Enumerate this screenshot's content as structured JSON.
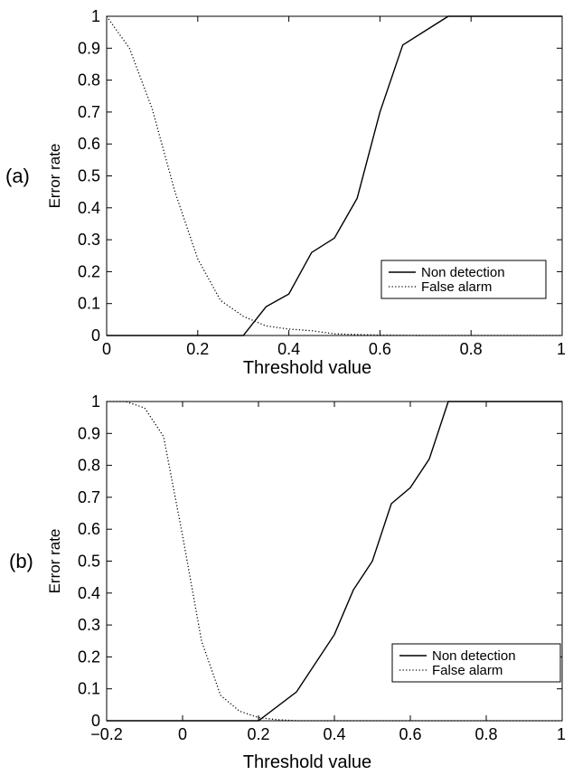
{
  "chart_data": [
    {
      "type": "line",
      "panel_label": "(a)",
      "xlabel": "Threshold value",
      "ylabel": "Error rate",
      "xlim": [
        0,
        1
      ],
      "ylim": [
        0,
        1
      ],
      "xticks": [
        0,
        0.2,
        0.4,
        0.6,
        0.8,
        1
      ],
      "xtick_labels": [
        "0",
        "0.2",
        "0.4",
        "0.6",
        "0.8",
        "1"
      ],
      "yticks": [
        0,
        0.1,
        0.2,
        0.3,
        0.4,
        0.5,
        0.6,
        0.7,
        0.8,
        0.9,
        1
      ],
      "ytick_labels": [
        "0",
        "0.1",
        "0.2",
        "0.3",
        "0.4",
        "0.5",
        "0.6",
        "0.7",
        "0.8",
        "0.9",
        "1"
      ],
      "grid": false,
      "legend_position": "bottom-right",
      "series": [
        {
          "name": "Non detection",
          "style": "solid",
          "x": [
            0,
            0.3,
            0.35,
            0.4,
            0.45,
            0.5,
            0.55,
            0.6,
            0.65,
            0.7,
            0.75,
            1
          ],
          "y": [
            0,
            0,
            0.09,
            0.13,
            0.26,
            0.305,
            0.43,
            0.7,
            0.91,
            0.955,
            1,
            1
          ]
        },
        {
          "name": "False alarm",
          "style": "dotted",
          "x": [
            0,
            0.05,
            0.1,
            0.15,
            0.2,
            0.25,
            0.3,
            0.35,
            0.4,
            0.45,
            0.5,
            0.55,
            0.6,
            0.7,
            0.8,
            1
          ],
          "y": [
            1,
            0.9,
            0.71,
            0.45,
            0.24,
            0.11,
            0.06,
            0.03,
            0.02,
            0.015,
            0.005,
            0.003,
            0.001,
            0,
            0,
            0
          ]
        }
      ]
    },
    {
      "type": "line",
      "panel_label": "(b)",
      "xlabel": "Threshold value",
      "ylabel": "Error rate",
      "xlim": [
        -0.2,
        1
      ],
      "ylim": [
        0,
        1
      ],
      "xticks": [
        -0.2,
        0,
        0.2,
        0.4,
        0.6,
        0.8,
        1
      ],
      "xtick_labels": [
        "−0.2",
        "0",
        "0.2",
        "0.4",
        "0.6",
        "0.8",
        "1"
      ],
      "yticks": [
        0,
        0.1,
        0.2,
        0.3,
        0.4,
        0.5,
        0.6,
        0.7,
        0.8,
        0.9,
        1
      ],
      "ytick_labels": [
        "0",
        "0.1",
        "0.2",
        "0.3",
        "0.4",
        "0.5",
        "0.6",
        "0.7",
        "0.8",
        "0.9",
        "1"
      ],
      "grid": false,
      "legend_position": "bottom-right",
      "series": [
        {
          "name": "Non detection",
          "style": "solid",
          "x": [
            -0.2,
            0.2,
            0.3,
            0.4,
            0.45,
            0.5,
            0.55,
            0.6,
            0.65,
            0.7,
            1
          ],
          "y": [
            0,
            0,
            0.09,
            0.27,
            0.41,
            0.5,
            0.68,
            0.73,
            0.82,
            1,
            1
          ]
        },
        {
          "name": "False alarm",
          "style": "dotted",
          "x": [
            -0.2,
            -0.15,
            -0.1,
            -0.05,
            0,
            0.05,
            0.1,
            0.15,
            0.2,
            0.25,
            0.3,
            0.4,
            1
          ],
          "y": [
            1,
            1,
            0.98,
            0.89,
            0.58,
            0.25,
            0.08,
            0.03,
            0.01,
            0.003,
            0,
            0,
            0
          ]
        }
      ]
    }
  ]
}
